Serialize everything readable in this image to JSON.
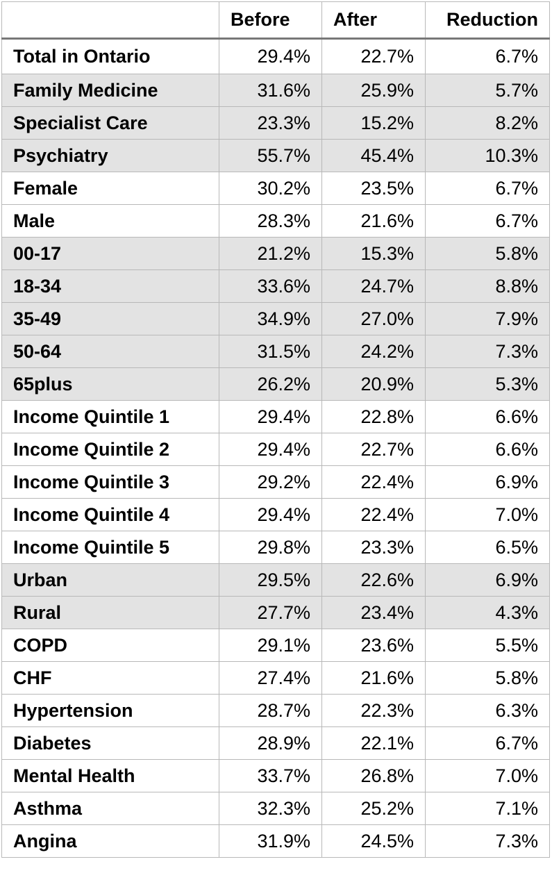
{
  "headers": [
    "",
    "Before",
    "After",
    "Reduction"
  ],
  "rows": [
    {
      "label": "Total  in Ontario",
      "before": "29.4%",
      "after": "22.7%",
      "reduction": "6.7%",
      "shaded": false
    },
    {
      "label": "Family Medicine",
      "before": "31.6%",
      "after": "25.9%",
      "reduction": "5.7%",
      "shaded": true
    },
    {
      "label": "Specialist Care",
      "before": "23.3%",
      "after": "15.2%",
      "reduction": "8.2%",
      "shaded": true
    },
    {
      "label": "Psychiatry",
      "before": "55.7%",
      "after": "45.4%",
      "reduction": "10.3%",
      "shaded": true
    },
    {
      "label": "Female",
      "before": "30.2%",
      "after": "23.5%",
      "reduction": "6.7%",
      "shaded": false
    },
    {
      "label": "Male",
      "before": "28.3%",
      "after": "21.6%",
      "reduction": "6.7%",
      "shaded": false
    },
    {
      "label": "00-17",
      "before": "21.2%",
      "after": "15.3%",
      "reduction": "5.8%",
      "shaded": true
    },
    {
      "label": "18-34",
      "before": "33.6%",
      "after": "24.7%",
      "reduction": "8.8%",
      "shaded": true
    },
    {
      "label": "35-49",
      "before": "34.9%",
      "after": "27.0%",
      "reduction": "7.9%",
      "shaded": true
    },
    {
      "label": "50-64",
      "before": "31.5%",
      "after": "24.2%",
      "reduction": "7.3%",
      "shaded": true
    },
    {
      "label": "65plus",
      "before": "26.2%",
      "after": "20.9%",
      "reduction": "5.3%",
      "shaded": true
    },
    {
      "label": "Income Quintile 1",
      "before": "29.4%",
      "after": "22.8%",
      "reduction": "6.6%",
      "shaded": false
    },
    {
      "label": "Income Quintile 2",
      "before": "29.4%",
      "after": "22.7%",
      "reduction": "6.6%",
      "shaded": false
    },
    {
      "label": "Income Quintile 3",
      "before": "29.2%",
      "after": "22.4%",
      "reduction": "6.9%",
      "shaded": false
    },
    {
      "label": "Income Quintile 4",
      "before": "29.4%",
      "after": "22.4%",
      "reduction": "7.0%",
      "shaded": false
    },
    {
      "label": "Income Quintile 5",
      "before": "29.8%",
      "after": "23.3%",
      "reduction": "6.5%",
      "shaded": false
    },
    {
      "label": "Urban",
      "before": "29.5%",
      "after": "22.6%",
      "reduction": "6.9%",
      "shaded": true
    },
    {
      "label": "Rural",
      "before": "27.7%",
      "after": "23.4%",
      "reduction": "4.3%",
      "shaded": true
    },
    {
      "label": "COPD",
      "before": "29.1%",
      "after": "23.6%",
      "reduction": "5.5%",
      "shaded": false
    },
    {
      "label": "CHF",
      "before": "27.4%",
      "after": "21.6%",
      "reduction": "5.8%",
      "shaded": false
    },
    {
      "label": "Hypertension",
      "before": "28.7%",
      "after": "22.3%",
      "reduction": "6.3%",
      "shaded": false
    },
    {
      "label": "Diabetes",
      "before": "28.9%",
      "after": "22.1%",
      "reduction": "6.7%",
      "shaded": false
    },
    {
      "label": "Mental Health",
      "before": "33.7%",
      "after": "26.8%",
      "reduction": "7.0%",
      "shaded": false
    },
    {
      "label": "Asthma",
      "before": "32.3%",
      "after": "25.2%",
      "reduction": "7.1%",
      "shaded": false
    },
    {
      "label": "Angina",
      "before": "31.9%",
      "after": "24.5%",
      "reduction": "7.3%",
      "shaded": false
    }
  ],
  "colors": {
    "shade": "#e3e3e3",
    "border": "#b8b8b8",
    "header_rule": "#777777"
  }
}
